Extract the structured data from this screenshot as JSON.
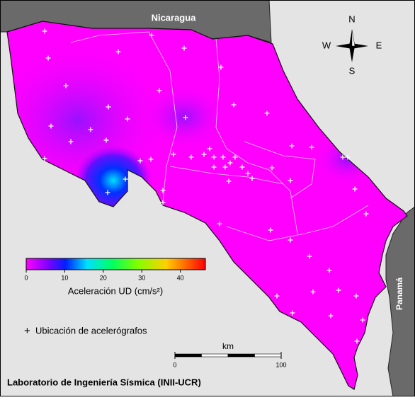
{
  "labels": {
    "nicaragua": "Nicaragua",
    "panama": "Panamá"
  },
  "compass": {
    "north": "N",
    "south": "S",
    "west": "W",
    "east": "E"
  },
  "colorbar": {
    "title": "Aceleración UD (cm/s²)",
    "lim": [
      0,
      46.5
    ],
    "ticks": [
      0,
      10,
      20,
      30,
      40
    ]
  },
  "legend": {
    "marker": "+",
    "text": "Ubicación de acelerógrafos"
  },
  "scale_bar": {
    "unit": "km",
    "lim": [
      0,
      100
    ],
    "ticks": [
      0,
      100
    ]
  },
  "footer": "Laboratorio de Ingeniería Sísmica (INII-UCR)"
}
